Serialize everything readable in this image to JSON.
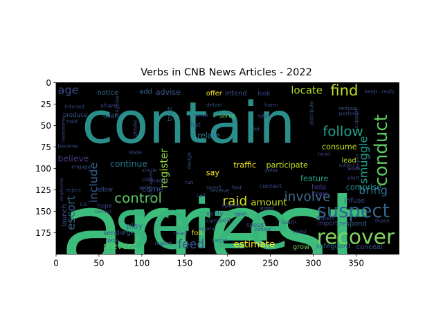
{
  "chart_data": {
    "type": "wordcloud",
    "title": "Verbs in CNB News Articles - 2022",
    "xlim": [
      0,
      400
    ],
    "ylim": [
      200,
      0
    ],
    "x_ticks": [
      0,
      50,
      100,
      150,
      200,
      250,
      300,
      350
    ],
    "y_ticks": [
      0,
      25,
      50,
      75,
      100,
      125,
      150,
      175
    ],
    "background": "#000000",
    "words": [
      {
        "text": "arrest",
        "x": 5,
        "y": 215,
        "size": 123,
        "color": "#3dbd7c",
        "rot": 0
      },
      {
        "text": "contain",
        "x": 30,
        "y": 70,
        "size": 67,
        "color": "#2a8f8a",
        "rot": 0
      },
      {
        "text": "seize",
        "x": 68,
        "y": 193,
        "size": 80,
        "color": "#37b57d",
        "rot": 0
      },
      {
        "text": "recover",
        "x": 304,
        "y": 188,
        "size": 24,
        "color": "#7fd460",
        "rot": 0
      },
      {
        "text": "suspect",
        "x": 304,
        "y": 157,
        "size": 22,
        "color": "#33638d",
        "rot": 0
      },
      {
        "text": "conduct",
        "x": 386,
        "y": 121,
        "size": 21,
        "color": "#5ec962",
        "rot": 270
      },
      {
        "text": "control",
        "x": 68,
        "y": 140,
        "size": 16,
        "color": "#5ec962",
        "rot": 0
      },
      {
        "text": "involve",
        "x": 266,
        "y": 138,
        "size": 15,
        "color": "#3f6b8d",
        "rot": 0
      },
      {
        "text": "follow",
        "x": 311,
        "y": 62,
        "size": 16,
        "color": "#25a18e",
        "rot": 0
      },
      {
        "text": "find",
        "x": 320,
        "y": 15,
        "size": 17,
        "color": "#c2df23",
        "rot": 0
      },
      {
        "text": "locate",
        "x": 274,
        "y": 13,
        "size": 12,
        "color": "#b5de2b",
        "rot": 0
      },
      {
        "text": "smuggle",
        "x": 363,
        "y": 118,
        "size": 13,
        "color": "#1f9e89",
        "rot": 270
      },
      {
        "text": "bring",
        "x": 353,
        "y": 130,
        "size": 13,
        "color": "#2e6e8e",
        "rot": 0
      },
      {
        "text": "raid",
        "x": 194,
        "y": 143,
        "size": 15,
        "color": "#d8e219",
        "rot": 0
      },
      {
        "text": "amount",
        "x": 227,
        "y": 143,
        "size": 11,
        "color": "#c8e020",
        "rot": 0
      },
      {
        "text": "feed",
        "x": 142,
        "y": 193,
        "size": 14,
        "color": "#3b528b",
        "rot": 0
      },
      {
        "text": "estimate",
        "x": 207,
        "y": 192,
        "size": 11,
        "color": "#fde725",
        "rot": 0
      },
      {
        "text": "include",
        "x": 48,
        "y": 140,
        "size": 13,
        "color": "#35608d",
        "rot": 270
      },
      {
        "text": "escort",
        "x": 22,
        "y": 172,
        "size": 13,
        "color": "#33638d",
        "rot": 270
      },
      {
        "text": "register",
        "x": 130,
        "y": 123,
        "size": 12,
        "color": "#90d743",
        "rot": 270
      },
      {
        "text": "age",
        "x": 2,
        "y": 13,
        "size": 13,
        "color": "#3b528b",
        "rot": 0
      },
      {
        "text": "continue",
        "x": 63,
        "y": 98,
        "size": 10,
        "color": "#2a788e",
        "rot": 0
      },
      {
        "text": "believe",
        "x": 2,
        "y": 92,
        "size": 10,
        "color": "#453781",
        "rot": 0
      },
      {
        "text": "prevent",
        "x": 55,
        "y": 194,
        "size": 10,
        "color": "#5ec962",
        "rot": 0
      },
      {
        "text": "traffic",
        "x": 207,
        "y": 99,
        "size": 9,
        "color": "#fde725",
        "rot": 0
      },
      {
        "text": "participate",
        "x": 245,
        "y": 99,
        "size": 9,
        "color": "#c8e020",
        "rot": 0
      },
      {
        "text": "consume",
        "x": 310,
        "y": 78,
        "size": 9,
        "color": "#c8e020",
        "rot": 0
      },
      {
        "text": "lead",
        "x": 333,
        "y": 93,
        "size": 8,
        "color": "#b5de2b",
        "rot": 0
      },
      {
        "text": "feature",
        "x": 285,
        "y": 115,
        "size": 9,
        "color": "#1f9e89",
        "rot": 0
      },
      {
        "text": "comprise",
        "x": 338,
        "y": 125,
        "size": 9,
        "color": "#21918c",
        "rot": 0
      },
      {
        "text": "help",
        "x": 298,
        "y": 124,
        "size": 8,
        "color": "#443983",
        "rot": 0
      },
      {
        "text": "advise",
        "x": 116,
        "y": 14,
        "size": 9,
        "color": "#38588c",
        "rot": 0
      },
      {
        "text": "notice",
        "x": 48,
        "y": 14,
        "size": 8,
        "color": "#31688e",
        "rot": 0
      },
      {
        "text": "add",
        "x": 97,
        "y": 13,
        "size": 8,
        "color": "#31688e",
        "rot": 0
      },
      {
        "text": "offer",
        "x": 175,
        "y": 15,
        "size": 8,
        "color": "#fde725",
        "rot": 0
      },
      {
        "text": "intend",
        "x": 197,
        "y": 15,
        "size": 8,
        "color": "#3b528b",
        "rot": 0
      },
      {
        "text": "look",
        "x": 235,
        "y": 15,
        "size": 7,
        "color": "#3e4989",
        "rot": 0
      },
      {
        "text": "produce",
        "x": 8,
        "y": 40,
        "size": 7,
        "color": "#3b528b",
        "rot": 0
      },
      {
        "text": "share",
        "x": 52,
        "y": 29,
        "size": 7,
        "color": "#404688",
        "rot": 0
      },
      {
        "text": "deal",
        "x": 55,
        "y": 41,
        "size": 7,
        "color": "#31688e",
        "rot": 0
      },
      {
        "text": "serve",
        "x": 190,
        "y": 41,
        "size": 7,
        "color": "#5ec962",
        "rot": 0
      },
      {
        "text": "seek",
        "x": 235,
        "y": 41,
        "size": 7,
        "color": "#3b528b",
        "rot": 0
      },
      {
        "text": "relate",
        "x": 165,
        "y": 65,
        "size": 9,
        "color": "#2a788e",
        "rot": 0
      },
      {
        "text": "come",
        "x": 100,
        "y": 127,
        "size": 9,
        "color": "#38588c",
        "rot": 0
      },
      {
        "text": "play",
        "x": 82,
        "y": 170,
        "size": 9,
        "color": "#31688e",
        "rot": 0
      },
      {
        "text": "send",
        "x": 55,
        "y": 178,
        "size": 8,
        "color": "#3b528b",
        "rot": 0
      },
      {
        "text": "sell",
        "x": 190,
        "y": 163,
        "size": 8,
        "color": "#3b528b",
        "rot": 0
      },
      {
        "text": "foil",
        "x": 158,
        "y": 178,
        "size": 8,
        "color": "#f2e51d",
        "rot": 0
      },
      {
        "text": "read",
        "x": 137,
        "y": 178,
        "size": 7,
        "color": "#3b528b",
        "rot": 0
      },
      {
        "text": "grow",
        "x": 276,
        "y": 194,
        "size": 8,
        "color": "#6ece58",
        "rot": 0
      },
      {
        "text": "safeguard",
        "x": 303,
        "y": 193,
        "size": 8,
        "color": "#31688e",
        "rot": 0
      },
      {
        "text": "conceal",
        "x": 350,
        "y": 194,
        "size": 8,
        "color": "#38588c",
        "rot": 0
      },
      {
        "text": "respond",
        "x": 330,
        "y": 167,
        "size": 8,
        "color": "#35608d",
        "rot": 0
      },
      {
        "text": "contact",
        "x": 237,
        "y": 123,
        "size": 7,
        "color": "#3b528b",
        "rot": 0
      },
      {
        "text": "infuse",
        "x": 336,
        "y": 140,
        "size": 8,
        "color": "#3e4989",
        "rot": 0
      },
      {
        "text": "say",
        "x": 175,
        "y": 108,
        "size": 9,
        "color": "#fde725",
        "rot": 0
      },
      {
        "text": "launch",
        "x": 12,
        "y": 168,
        "size": 8,
        "color": "#3b528b",
        "rot": 270
      },
      {
        "text": "know",
        "x": 298,
        "y": 132,
        "size": 7,
        "color": "#443983",
        "rot": 0
      },
      {
        "text": "urge",
        "x": 75,
        "y": 177,
        "size": 7,
        "color": "#31688e",
        "rot": 0
      },
      {
        "text": "allow",
        "x": 48,
        "y": 127,
        "size": 7,
        "color": "#3b528b",
        "rot": 0
      },
      {
        "text": "hope",
        "x": 48,
        "y": 146,
        "size": 7,
        "color": "#404688",
        "rot": 0
      },
      {
        "text": "force",
        "x": 58,
        "y": 186,
        "size": 6,
        "color": "#3e4989",
        "rot": 0
      },
      {
        "text": "trust",
        "x": 135,
        "y": 45,
        "size": 7,
        "color": "#31688e",
        "rot": 270
      },
      {
        "text": "engage",
        "x": 18,
        "y": 100,
        "size": 6,
        "color": "#3b528b",
        "rot": 0
      },
      {
        "text": "interact",
        "x": 10,
        "y": 30,
        "size": 6,
        "color": "#404688",
        "rot": 0
      },
      {
        "text": "hold",
        "x": 12,
        "y": 47,
        "size": 6,
        "color": "#3e4989",
        "rot": 0
      },
      {
        "text": "call",
        "x": 164,
        "y": 133,
        "size": 6,
        "color": "#3b528b",
        "rot": 0
      },
      {
        "text": "verify",
        "x": 175,
        "y": 155,
        "size": 7,
        "color": "#3e4989",
        "rot": 0
      },
      {
        "text": "spend",
        "x": 193,
        "y": 145,
        "size": 7,
        "color": "#3e4989",
        "rot": 0
      },
      {
        "text": "speak",
        "x": 222,
        "y": 168,
        "size": 7,
        "color": "#3b528b",
        "rot": 0
      },
      {
        "text": "learn",
        "x": 263,
        "y": 165,
        "size": 7,
        "color": "#3b528b",
        "rot": 0
      },
      {
        "text": "import",
        "x": 305,
        "y": 166,
        "size": 7,
        "color": "#404688",
        "rot": 0
      },
      {
        "text": "thank",
        "x": 372,
        "y": 163,
        "size": 6,
        "color": "#404688",
        "rot": 0
      },
      {
        "text": "reply",
        "x": 380,
        "y": 12,
        "size": 6,
        "color": "#3e4989",
        "rot": 0
      },
      {
        "text": "keep",
        "x": 360,
        "y": 12,
        "size": 6,
        "color": "#3b528b",
        "rot": 0
      },
      {
        "text": "remain",
        "x": 330,
        "y": 32,
        "size": 6,
        "color": "#3b528b",
        "rot": 0
      },
      {
        "text": "perform",
        "x": 330,
        "y": 38,
        "size": 6,
        "color": "#3b528b",
        "rot": 0
      },
      {
        "text": "head",
        "x": 305,
        "y": 85,
        "size": 6,
        "color": "#404688",
        "rot": 0
      },
      {
        "text": "work",
        "x": 340,
        "y": 102,
        "size": 6,
        "color": "#3b528b",
        "rot": 0
      },
      {
        "text": "alert",
        "x": 340,
        "y": 113,
        "size": 6,
        "color": "#3b528b",
        "rot": 0
      },
      {
        "text": "stand",
        "x": 237,
        "y": 148,
        "size": 6,
        "color": "#3b528b",
        "rot": 0
      },
      {
        "text": "open",
        "x": 208,
        "y": 155,
        "size": 6,
        "color": "#3b528b",
        "rot": 0
      },
      {
        "text": "refuse",
        "x": 232,
        "y": 173,
        "size": 6,
        "color": "#3b528b",
        "rot": 0
      },
      {
        "text": "protect",
        "x": 303,
        "y": 160,
        "size": 6,
        "color": "#3e4989",
        "rot": 0
      },
      {
        "text": "target",
        "x": 182,
        "y": 186,
        "size": 6,
        "color": "#31688e",
        "rot": 0
      },
      {
        "text": "regard",
        "x": 115,
        "y": 189,
        "size": 6,
        "color": "#3b528b",
        "rot": 0
      },
      {
        "text": "appeal",
        "x": 166,
        "y": 172,
        "size": 6,
        "color": "#3e4989",
        "rot": 0
      },
      {
        "text": "receive",
        "x": 180,
        "y": 128,
        "size": 6,
        "color": "#3b528b",
        "rot": 0
      },
      {
        "text": "fold",
        "x": 205,
        "y": 124,
        "size": 6,
        "color": "#3b528b",
        "rot": 0
      },
      {
        "text": "select",
        "x": 175,
        "y": 124,
        "size": 6,
        "color": "#3b528b",
        "rot": 0
      },
      {
        "text": "pick",
        "x": 97,
        "y": 124,
        "size": 6,
        "color": "#3e4989",
        "rot": 0
      },
      {
        "text": "click",
        "x": 100,
        "y": 115,
        "size": 6,
        "color": "#3e4989",
        "rot": 0
      },
      {
        "text": "state",
        "x": 85,
        "y": 83,
        "size": 6,
        "color": "#3b528b",
        "rot": 0
      },
      {
        "text": "become",
        "x": 2,
        "y": 76,
        "size": 6,
        "color": "#3b528b",
        "rot": 0
      },
      {
        "text": "reject",
        "x": 12,
        "y": 127,
        "size": 6,
        "color": "#3e4989",
        "rot": 0
      },
      {
        "text": "carry",
        "x": 175,
        "y": 163,
        "size": 6,
        "color": "#3b528b",
        "rot": 0
      },
      {
        "text": "harm",
        "x": 243,
        "y": 28,
        "size": 6,
        "color": "#3e4989",
        "rot": 0
      },
      {
        "text": "deter",
        "x": 243,
        "y": 104,
        "size": 6,
        "color": "#3b528b",
        "rot": 0
      },
      {
        "text": "detain",
        "x": 175,
        "y": 28,
        "size": 6,
        "color": "#3b528b",
        "rot": 0
      },
      {
        "text": "single",
        "x": 100,
        "y": 104,
        "size": 6,
        "color": "#3e4989",
        "rot": 0
      },
      {
        "text": "disguise",
        "x": 73,
        "y": 40,
        "size": 6,
        "color": "#3b528b",
        "rot": 270
      },
      {
        "text": "phishe",
        "x": 94,
        "y": 63,
        "size": 6,
        "color": "#3e4989",
        "rot": 270
      },
      {
        "text": "livestreame",
        "x": 10,
        "y": 70,
        "size": 5,
        "color": "#3b528b",
        "rot": 270
      },
      {
        "text": "emphasise",
        "x": 8,
        "y": 138,
        "size": 5,
        "color": "#3e4989",
        "rot": 270
      },
      {
        "text": "conceptualise",
        "x": 112,
        "y": 140,
        "size": 5,
        "color": "#3e4989",
        "rot": 270
      },
      {
        "text": "distribute",
        "x": 300,
        "y": 50,
        "size": 6,
        "color": "#3b528b",
        "rot": 270
      },
      {
        "text": "support",
        "x": 352,
        "y": 53,
        "size": 6,
        "color": "#3e4989",
        "rot": 270
      },
      {
        "text": "purport",
        "x": 353,
        "y": 101,
        "size": 5,
        "color": "#3e4989",
        "rot": 270
      },
      {
        "text": "design",
        "x": 157,
        "y": 101,
        "size": 6,
        "color": "#3b528b",
        "rot": 270
      },
      {
        "text": "run",
        "x": 150,
        "y": 118,
        "size": 6,
        "color": "#3b528b",
        "rot": 0
      },
      {
        "text": "market",
        "x": 110,
        "y": 116,
        "size": 6,
        "color": "#3e4989",
        "rot": 0
      },
      {
        "text": "subject",
        "x": 330,
        "y": 98,
        "size": 5,
        "color": "#3e4989",
        "rot": 0
      },
      {
        "text": "arrive",
        "x": 160,
        "y": 40,
        "size": 6,
        "color": "#3b528b",
        "rot": 0
      },
      {
        "text": "connect",
        "x": 45,
        "y": 152,
        "size": 5,
        "color": "#3e4989",
        "rot": 0
      },
      {
        "text": "enlist",
        "x": 276,
        "y": 176,
        "size": 6,
        "color": "#3e4989",
        "rot": 0
      },
      {
        "text": "list",
        "x": 157,
        "y": 52,
        "size": 8,
        "color": "#3b528b",
        "rot": 0
      },
      {
        "text": "co",
        "x": 28,
        "y": 144,
        "size": 7,
        "color": "#3b528b",
        "rot": 0
      },
      {
        "text": "let",
        "x": 230,
        "y": 56,
        "size": 6,
        "color": "#3b528b",
        "rot": 0
      }
    ]
  }
}
